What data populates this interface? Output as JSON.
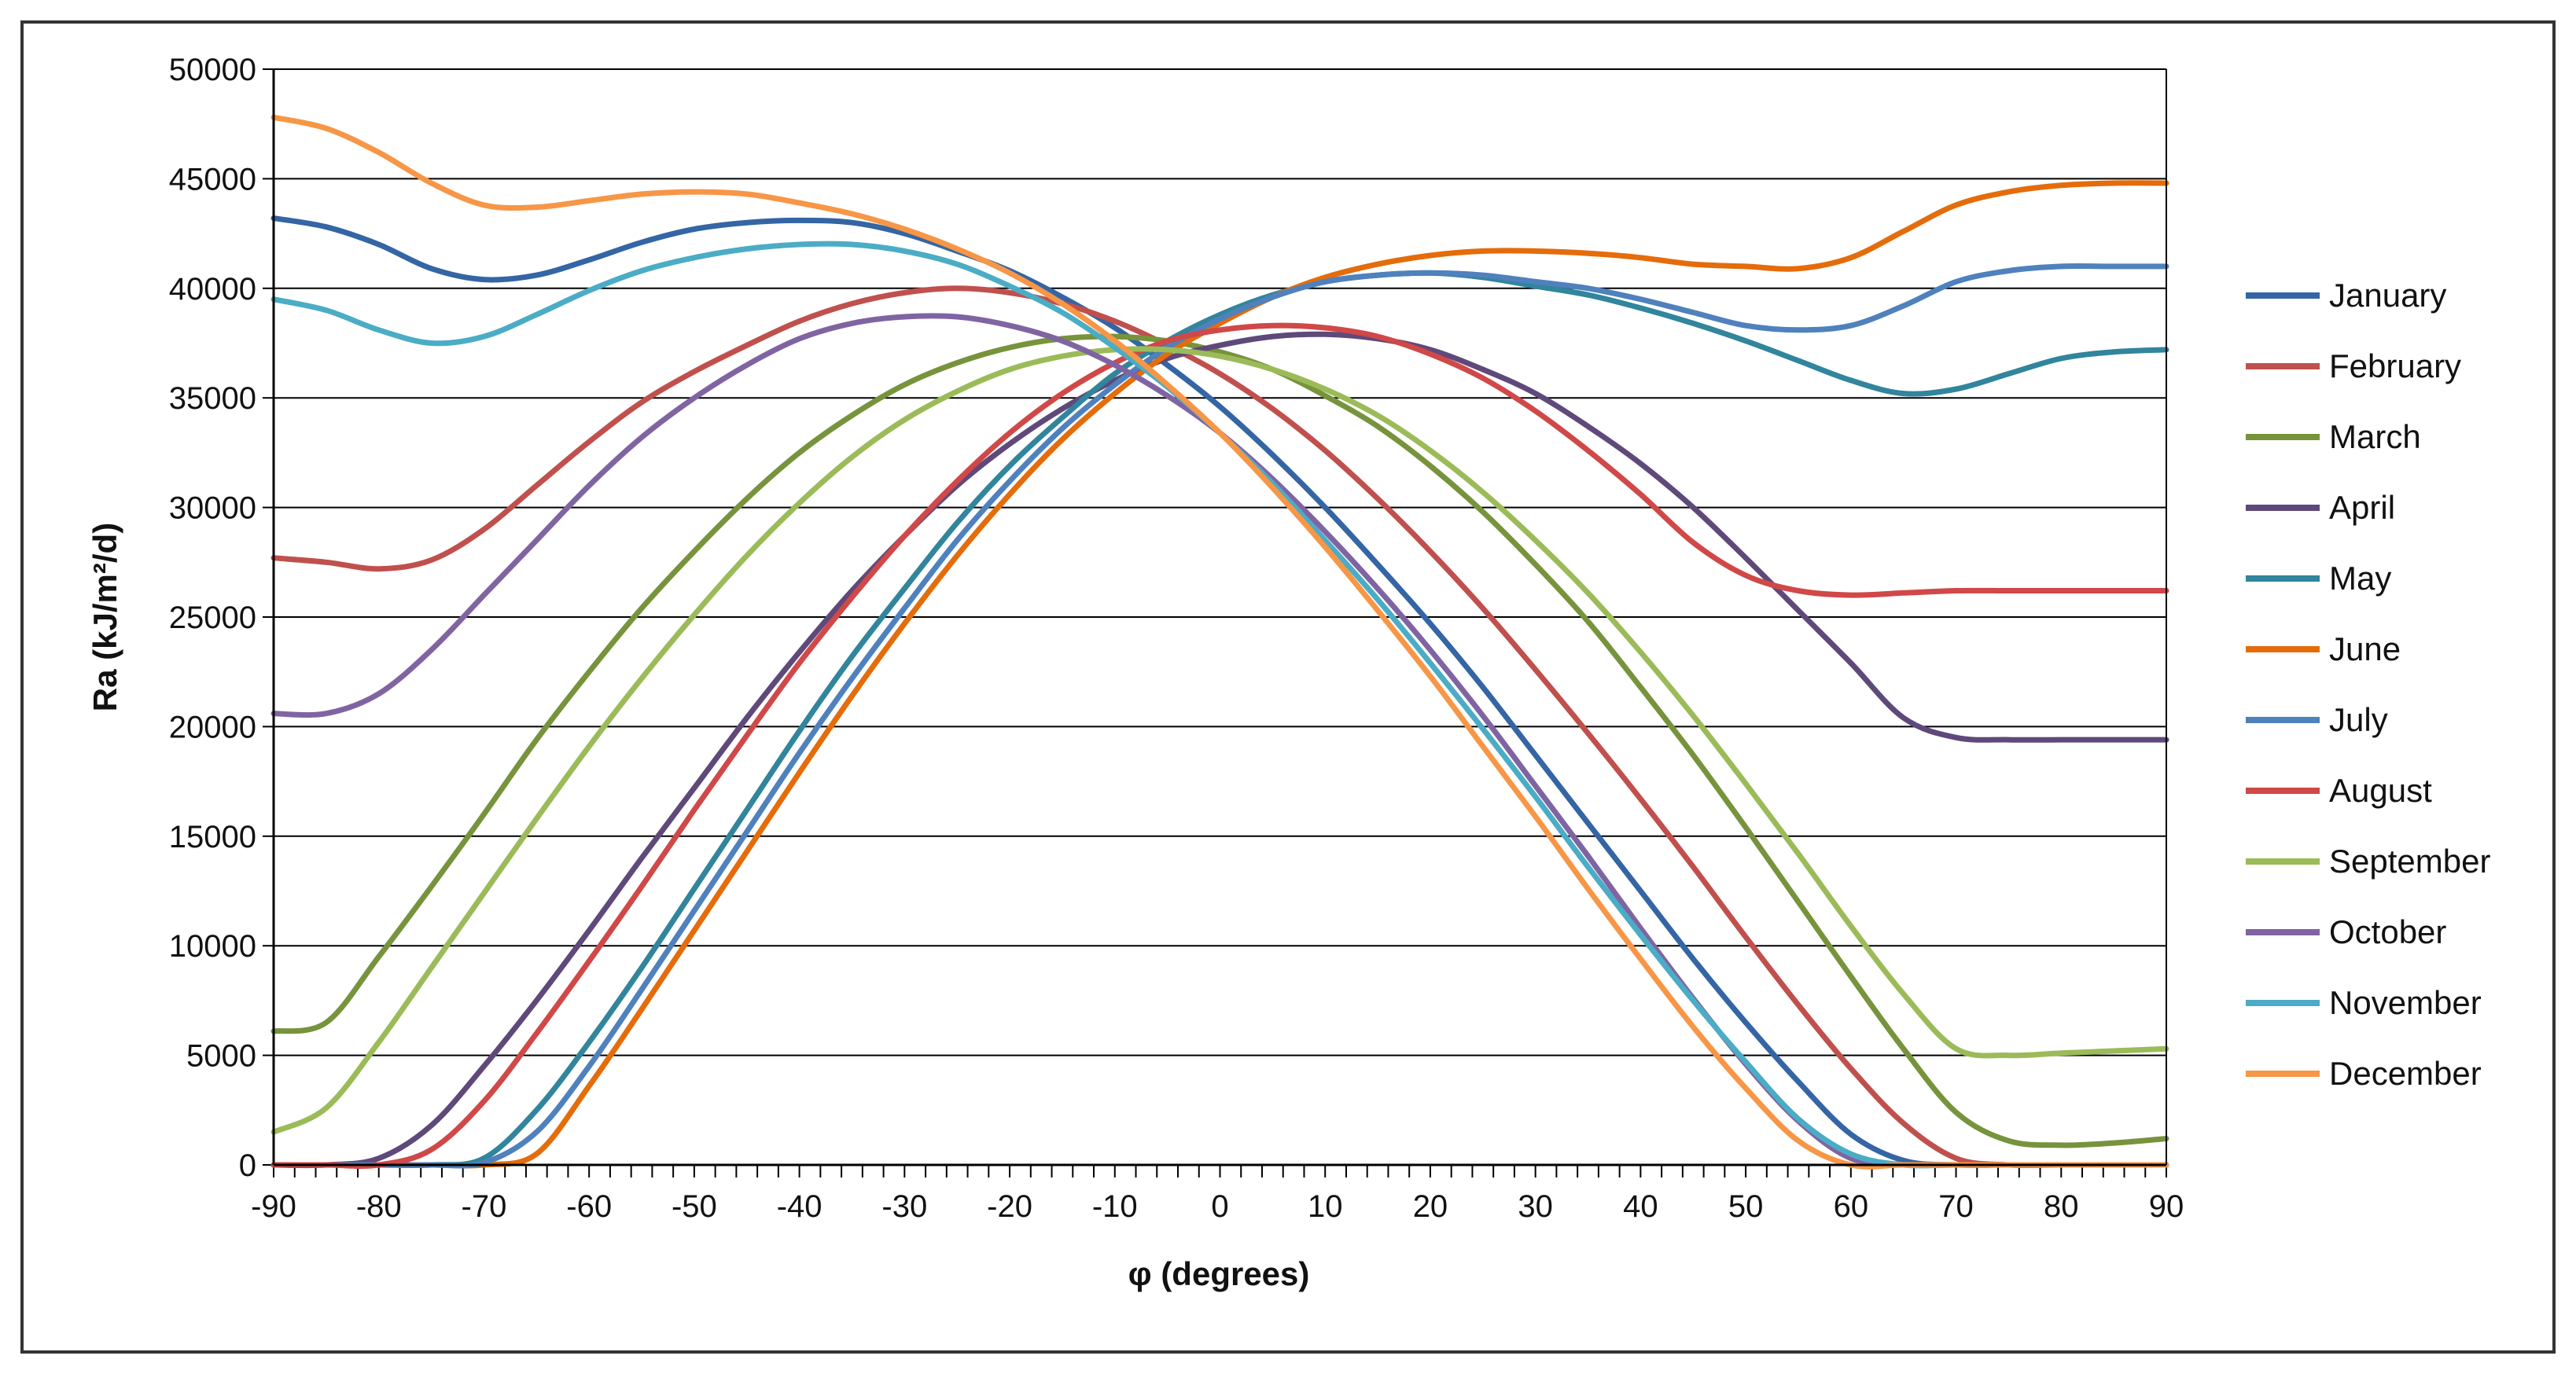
{
  "chart_data": {
    "type": "line",
    "title": "",
    "xlabel": "φ (degrees)",
    "ylabel": "Ra (kJ/m²/d)",
    "xlim": [
      -90,
      90
    ],
    "ylim": [
      0,
      50000
    ],
    "grid": "horizontal",
    "legend_position": "right",
    "x": [
      -90,
      -85,
      -80,
      -75,
      -70,
      -65,
      -60,
      -55,
      -50,
      -45,
      -40,
      -35,
      -30,
      -25,
      -20,
      -15,
      -10,
      -5,
      0,
      5,
      10,
      15,
      20,
      25,
      30,
      35,
      40,
      45,
      50,
      55,
      60,
      65,
      70,
      75,
      80,
      85,
      90
    ],
    "x_ticks": [
      "-90",
      "-80",
      "-70",
      "-60",
      "-50",
      "-40",
      "-30",
      "-20",
      "-10",
      "0",
      "10",
      "20",
      "30",
      "40",
      "50",
      "60",
      "70",
      "80",
      "90"
    ],
    "y_ticks": [
      "0",
      "5000",
      "10000",
      "15000",
      "20000",
      "25000",
      "30000",
      "35000",
      "40000",
      "45000",
      "50000"
    ],
    "series": [
      {
        "name": "January",
        "color": "#3465a4",
        "values": [
          43200,
          42800,
          42000,
          40900,
          40400,
          40600,
          41300,
          42100,
          42700,
          43000,
          43100,
          43000,
          42500,
          41700,
          40800,
          39600,
          38200,
          36500,
          34600,
          32400,
          30000,
          27400,
          24700,
          21800,
          18700,
          15600,
          12500,
          9400,
          6500,
          3800,
          1400,
          200,
          0,
          0,
          0,
          0,
          0
        ]
      },
      {
        "name": "February",
        "color": "#c0504d",
        "values": [
          27700,
          27500,
          27200,
          27600,
          29000,
          31000,
          33000,
          34800,
          36200,
          37400,
          38500,
          39300,
          39800,
          40000,
          39800,
          39300,
          38500,
          37400,
          36100,
          34500,
          32600,
          30400,
          28000,
          25400,
          22600,
          19700,
          16700,
          13600,
          10400,
          7300,
          4400,
          1900,
          300,
          0,
          0,
          0,
          0
        ]
      },
      {
        "name": "March",
        "color": "#77933c",
        "values": [
          6100,
          6500,
          9500,
          12700,
          16000,
          19400,
          22500,
          25400,
          28000,
          30400,
          32500,
          34200,
          35600,
          36600,
          37300,
          37700,
          37800,
          37600,
          37100,
          36300,
          35100,
          33700,
          31900,
          29800,
          27400,
          24800,
          21800,
          18700,
          15400,
          12000,
          8600,
          5300,
          2400,
          1100,
          900,
          1000,
          1200
        ]
      },
      {
        "name": "April",
        "color": "#5f497a",
        "values": [
          0,
          0,
          300,
          1800,
          4500,
          7500,
          10700,
          14000,
          17200,
          20400,
          23400,
          26200,
          28700,
          31000,
          32900,
          34500,
          35800,
          36800,
          37400,
          37800,
          37900,
          37700,
          37200,
          36300,
          35200,
          33700,
          32000,
          30000,
          27700,
          25300,
          22900,
          20400,
          19500,
          19400,
          19400,
          19400,
          19400
        ]
      },
      {
        "name": "May",
        "color": "#31859c",
        "values": [
          0,
          0,
          0,
          0,
          300,
          2500,
          5600,
          9000,
          12600,
          16200,
          19800,
          23200,
          26300,
          29300,
          31900,
          34100,
          36100,
          37600,
          38800,
          39700,
          40300,
          40600,
          40700,
          40500,
          40100,
          39700,
          39100,
          38400,
          37600,
          36700,
          35800,
          35200,
          35400,
          36100,
          36800,
          37100,
          37200
        ]
      },
      {
        "name": "June",
        "color": "#e46c0a",
        "values": [
          0,
          0,
          0,
          0,
          0,
          500,
          3600,
          7100,
          10700,
          14300,
          17900,
          21400,
          24700,
          27800,
          30600,
          33100,
          35200,
          37000,
          38400,
          39600,
          40500,
          41100,
          41500,
          41700,
          41700,
          41600,
          41400,
          41100,
          41000,
          40900,
          41400,
          42600,
          43800,
          44400,
          44700,
          44800,
          44800
        ]
      },
      {
        "name": "July",
        "color": "#4f81bd",
        "values": [
          0,
          0,
          0,
          0,
          100,
          1500,
          4500,
          8000,
          11600,
          15200,
          18800,
          22200,
          25400,
          28500,
          31200,
          33600,
          35600,
          37300,
          38600,
          39600,
          40300,
          40600,
          40700,
          40600,
          40300,
          40000,
          39500,
          38900,
          38300,
          38100,
          38300,
          39200,
          40300,
          40800,
          41000,
          41000,
          41000
        ]
      },
      {
        "name": "August",
        "color": "#d04848",
        "values": [
          0,
          0,
          0,
          700,
          2900,
          6000,
          9300,
          12700,
          16200,
          19600,
          22900,
          25900,
          28700,
          31200,
          33400,
          35200,
          36600,
          37600,
          38100,
          38300,
          38200,
          37800,
          37000,
          35900,
          34400,
          32600,
          30600,
          28400,
          26900,
          26200,
          26000,
          26100,
          26200,
          26200,
          26200,
          26200,
          26200
        ]
      },
      {
        "name": "September",
        "color": "#9bbb59",
        "values": [
          1500,
          2600,
          5600,
          9000,
          12400,
          15800,
          19100,
          22200,
          25100,
          27800,
          30200,
          32300,
          34000,
          35300,
          36300,
          36900,
          37200,
          37200,
          36900,
          36300,
          35400,
          34200,
          32600,
          30700,
          28500,
          26100,
          23400,
          20500,
          17400,
          14200,
          10900,
          7800,
          5300,
          5000,
          5100,
          5200,
          5300
        ]
      },
      {
        "name": "October",
        "color": "#8064a2",
        "values": [
          20600,
          20600,
          21500,
          23500,
          26000,
          28500,
          31000,
          33200,
          35000,
          36500,
          37700,
          38400,
          38700,
          38700,
          38300,
          37600,
          36500,
          35100,
          33400,
          31300,
          28900,
          26300,
          23500,
          20500,
          17300,
          14100,
          10800,
          7600,
          4600,
          2000,
          300,
          0,
          0,
          0,
          0,
          0,
          0
        ]
      },
      {
        "name": "November",
        "color": "#4bacc6",
        "values": [
          39500,
          39000,
          38100,
          37500,
          37800,
          38800,
          39900,
          40800,
          41400,
          41800,
          42000,
          42000,
          41700,
          41100,
          40100,
          38900,
          37300,
          35500,
          33400,
          31100,
          28500,
          25800,
          22900,
          19900,
          16800,
          13600,
          10500,
          7500,
          4700,
          2100,
          500,
          0,
          0,
          0,
          0,
          0,
          0
        ]
      },
      {
        "name": "December",
        "color": "#f79646",
        "values": [
          47800,
          47300,
          46200,
          44800,
          43800,
          43700,
          44000,
          44300,
          44400,
          44300,
          43900,
          43400,
          42700,
          41800,
          40700,
          39300,
          37600,
          35600,
          33400,
          30900,
          28200,
          25300,
          22300,
          19100,
          15900,
          12600,
          9400,
          6300,
          3500,
          1100,
          0,
          0,
          0,
          0,
          0,
          0,
          0
        ]
      }
    ]
  }
}
